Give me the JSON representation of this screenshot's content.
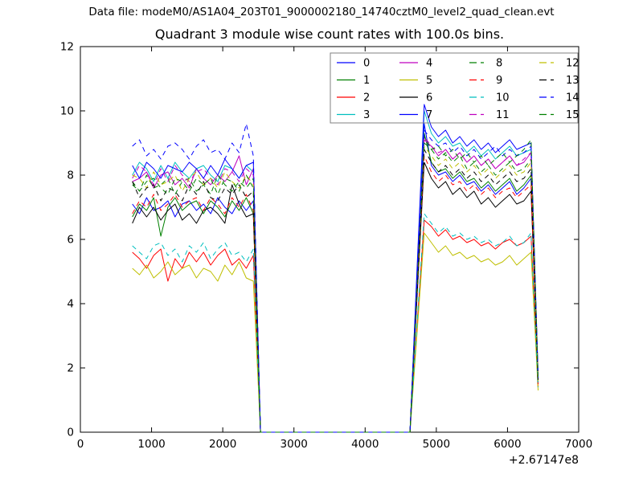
{
  "header": {
    "data_file": "Data file: modeM0/AS1A04_203T01_9000002180_14740cztM0_level2_quad_clean.evt"
  },
  "chart_data": {
    "type": "line",
    "title": "Quadrant 3 module wise count rates with 100.0s bins.",
    "xlabel": "",
    "ylabel": "",
    "bin_seconds": "100.0",
    "xlim": [
      0,
      7000
    ],
    "ylim": [
      0,
      12
    ],
    "x_ticks": [
      0,
      1000,
      2000,
      3000,
      4000,
      5000,
      6000,
      7000
    ],
    "y_ticks": [
      0,
      2,
      4,
      6,
      8,
      10,
      12
    ],
    "x_offset_label": "+2.67147e8",
    "grid": false,
    "legend_position": "upper-center-right",
    "legend_columns": 4,
    "x": [
      730,
      830,
      930,
      1030,
      1130,
      1230,
      1330,
      1430,
      1530,
      1630,
      1730,
      1830,
      1930,
      2030,
      2130,
      2230,
      2330,
      2430,
      2530,
      2630,
      2730,
      2830,
      2930,
      3030,
      3130,
      3230,
      3330,
      3430,
      3530,
      3630,
      3730,
      3830,
      3930,
      4030,
      4130,
      4230,
      4330,
      4430,
      4530,
      4630,
      4730,
      4830,
      4930,
      5030,
      5130,
      5230,
      5330,
      5430,
      5530,
      5630,
      5730,
      5830,
      5930,
      6030,
      6130,
      6230,
      6330,
      6430
    ],
    "series": [
      {
        "name": "0",
        "color": "#0000ff",
        "dashed": false,
        "values": [
          7.1,
          6.8,
          7.3,
          6.9,
          7.0,
          7.2,
          6.7,
          7.1,
          7.2,
          6.9,
          7.1,
          6.8,
          7.3,
          7.0,
          6.8,
          7.2,
          6.9,
          7.2,
          0,
          0,
          0,
          0,
          0,
          0,
          0,
          0,
          0,
          0,
          0,
          0,
          0,
          0,
          0,
          0,
          0,
          0,
          0,
          0,
          0,
          0,
          4.8,
          9.6,
          8.3,
          8.0,
          8.1,
          7.8,
          8.0,
          7.7,
          7.8,
          7.5,
          7.7,
          7.4,
          7.6,
          7.8,
          7.4,
          7.6,
          7.9,
          1.5
        ]
      },
      {
        "name": "1",
        "color": "#008000",
        "dashed": false,
        "values": [
          6.7,
          7.1,
          6.9,
          7.3,
          6.1,
          7.0,
          7.3,
          6.9,
          7.1,
          7.2,
          6.8,
          7.2,
          7.0,
          6.7,
          7.2,
          6.9,
          7.3,
          6.8,
          0,
          0,
          0,
          0,
          0,
          0,
          0,
          0,
          0,
          0,
          0,
          0,
          0,
          0,
          0,
          0,
          0,
          0,
          0,
          0,
          0,
          0,
          4.7,
          9.3,
          8.4,
          8.1,
          8.2,
          7.9,
          8.1,
          7.8,
          7.9,
          7.6,
          7.8,
          7.5,
          7.7,
          7.9,
          7.5,
          7.7,
          8.0,
          1.6
        ]
      },
      {
        "name": "2",
        "color": "#ff0000",
        "dashed": false,
        "values": [
          5.6,
          5.4,
          5.1,
          5.5,
          5.7,
          4.7,
          5.4,
          5.1,
          5.6,
          5.3,
          5.6,
          5.2,
          5.5,
          5.7,
          5.2,
          5.4,
          5.1,
          5.5,
          0,
          0,
          0,
          0,
          0,
          0,
          0,
          0,
          0,
          0,
          0,
          0,
          0,
          0,
          0,
          0,
          0,
          0,
          0,
          0,
          0,
          0,
          3.3,
          6.6,
          6.4,
          6.1,
          6.3,
          6.0,
          6.1,
          5.9,
          6.0,
          5.8,
          5.9,
          5.7,
          5.9,
          6.0,
          5.8,
          5.9,
          6.1,
          1.4
        ]
      },
      {
        "name": "3",
        "color": "#00bfbf",
        "dashed": false,
        "values": [
          8.0,
          8.4,
          8.2,
          7.8,
          8.3,
          7.9,
          8.4,
          8.1,
          7.9,
          8.2,
          8.3,
          8.0,
          7.8,
          8.3,
          8.2,
          7.9,
          8.3,
          8.1,
          0,
          0,
          0,
          0,
          0,
          0,
          0,
          0,
          0,
          0,
          0,
          0,
          0,
          0,
          0,
          0,
          0,
          0,
          0,
          0,
          0,
          0,
          5.0,
          10.0,
          9.3,
          9.0,
          9.2,
          8.9,
          9.0,
          8.7,
          8.9,
          8.6,
          8.8,
          8.5,
          8.7,
          8.9,
          8.6,
          8.7,
          8.8,
          1.7
        ]
      },
      {
        "name": "4",
        "color": "#bf00bf",
        "dashed": false,
        "values": [
          7.8,
          7.9,
          8.1,
          7.6,
          8.0,
          8.1,
          7.7,
          7.9,
          7.6,
          8.2,
          7.9,
          7.7,
          8.0,
          7.8,
          8.1,
          8.6,
          7.7,
          8.2,
          0,
          0,
          0,
          0,
          0,
          0,
          0,
          0,
          0,
          0,
          0,
          0,
          0,
          0,
          0,
          0,
          0,
          0,
          0,
          0,
          0,
          0,
          4.6,
          9.1,
          8.9,
          8.6,
          8.8,
          8.5,
          8.7,
          8.4,
          8.6,
          8.3,
          8.5,
          8.2,
          8.4,
          8.6,
          8.3,
          8.4,
          8.7,
          1.6
        ]
      },
      {
        "name": "5",
        "color": "#bfbf00",
        "dashed": false,
        "values": [
          5.1,
          4.9,
          5.2,
          4.8,
          5.0,
          5.3,
          4.9,
          5.1,
          5.2,
          4.8,
          5.1,
          5.0,
          4.7,
          5.2,
          4.9,
          5.3,
          4.8,
          4.7,
          0,
          0,
          0,
          0,
          0,
          0,
          0,
          0,
          0,
          0,
          0,
          0,
          0,
          0,
          0,
          0,
          0,
          0,
          0,
          0,
          0,
          0,
          3.1,
          6.2,
          5.9,
          5.6,
          5.8,
          5.5,
          5.6,
          5.4,
          5.5,
          5.3,
          5.4,
          5.2,
          5.3,
          5.5,
          5.2,
          5.4,
          5.6,
          1.3
        ]
      },
      {
        "name": "6",
        "color": "#000000",
        "dashed": false,
        "values": [
          6.5,
          7.0,
          6.7,
          7.0,
          6.6,
          6.9,
          7.1,
          6.6,
          6.8,
          6.5,
          6.9,
          7.0,
          6.8,
          6.5,
          7.7,
          7.1,
          6.7,
          6.8,
          0,
          0,
          0,
          0,
          0,
          0,
          0,
          0,
          0,
          0,
          0,
          0,
          0,
          0,
          0,
          0,
          0,
          0,
          0,
          0,
          0,
          0,
          4.2,
          8.4,
          7.9,
          7.6,
          7.8,
          7.4,
          7.6,
          7.3,
          7.5,
          7.1,
          7.3,
          7.0,
          7.2,
          7.4,
          7.1,
          7.2,
          7.5,
          1.5
        ]
      },
      {
        "name": "7",
        "color": "#0000ff",
        "dashed": false,
        "values": [
          8.3,
          7.9,
          8.4,
          8.2,
          7.9,
          8.3,
          8.2,
          8.1,
          8.4,
          8.2,
          7.9,
          8.3,
          8.0,
          8.5,
          8.2,
          7.9,
          8.3,
          8.4,
          0,
          0,
          0,
          0,
          0,
          0,
          0,
          0,
          0,
          0,
          0,
          0,
          0,
          0,
          0,
          0,
          0,
          0,
          0,
          0,
          0,
          0,
          5.1,
          10.2,
          9.5,
          9.2,
          9.4,
          9.0,
          9.2,
          8.9,
          9.1,
          8.8,
          9.0,
          8.7,
          8.9,
          9.1,
          8.8,
          8.9,
          9.0,
          1.8
        ]
      },
      {
        "name": "8",
        "color": "#008000",
        "dashed": true,
        "values": [
          7.8,
          7.5,
          8.0,
          7.6,
          7.7,
          7.9,
          7.4,
          7.8,
          7.9,
          7.5,
          7.7,
          7.4,
          8.0,
          7.7,
          7.5,
          7.8,
          7.6,
          7.9,
          0,
          0,
          0,
          0,
          0,
          0,
          0,
          0,
          0,
          0,
          0,
          0,
          0,
          0,
          0,
          0,
          0,
          0,
          0,
          0,
          0,
          0,
          4.6,
          9.2,
          8.8,
          8.5,
          8.7,
          8.4,
          8.6,
          8.2,
          8.4,
          8.1,
          8.3,
          8.0,
          8.2,
          8.4,
          8.1,
          8.2,
          8.5,
          1.6
        ]
      },
      {
        "name": "9",
        "color": "#ff0000",
        "dashed": true,
        "values": [
          6.8,
          7.2,
          7.0,
          7.4,
          6.9,
          7.1,
          7.4,
          7.0,
          7.2,
          7.3,
          6.9,
          7.3,
          7.1,
          6.8,
          7.3,
          7.0,
          7.4,
          6.9,
          0,
          0,
          0,
          0,
          0,
          0,
          0,
          0,
          0,
          0,
          0,
          0,
          0,
          0,
          0,
          0,
          0,
          0,
          0,
          0,
          0,
          0,
          4.3,
          8.6,
          8.1,
          7.8,
          8.0,
          7.7,
          7.8,
          7.5,
          7.7,
          7.4,
          7.6,
          7.3,
          7.5,
          7.6,
          7.3,
          7.5,
          7.7,
          1.5
        ]
      },
      {
        "name": "10",
        "color": "#00bfbf",
        "dashed": true,
        "values": [
          5.8,
          5.6,
          5.4,
          5.8,
          5.9,
          5.5,
          5.7,
          5.3,
          5.8,
          5.6,
          5.9,
          5.4,
          5.7,
          5.9,
          5.5,
          5.6,
          5.3,
          5.7,
          0,
          0,
          0,
          0,
          0,
          0,
          0,
          0,
          0,
          0,
          0,
          0,
          0,
          0,
          0,
          0,
          0,
          0,
          0,
          0,
          0,
          0,
          3.4,
          6.8,
          6.5,
          6.2,
          6.4,
          6.1,
          6.2,
          6.0,
          6.1,
          5.9,
          6.0,
          5.8,
          5.9,
          6.1,
          5.8,
          5.9,
          6.2,
          1.4
        ]
      },
      {
        "name": "11",
        "color": "#bf00bf",
        "dashed": true,
        "values": [
          7.9,
          8.3,
          8.1,
          7.7,
          8.2,
          7.8,
          8.3,
          8.0,
          7.8,
          8.1,
          8.2,
          7.9,
          7.7,
          8.2,
          8.1,
          7.8,
          8.2,
          8.0,
          0,
          0,
          0,
          0,
          0,
          0,
          0,
          0,
          0,
          0,
          0,
          0,
          0,
          0,
          0,
          0,
          0,
          0,
          0,
          0,
          0,
          0,
          4.6,
          9.2,
          8.9,
          8.7,
          8.8,
          8.5,
          8.7,
          8.4,
          8.6,
          8.3,
          8.5,
          8.2,
          8.4,
          8.6,
          8.3,
          8.5,
          8.7,
          1.7
        ]
      },
      {
        "name": "12",
        "color": "#bfbf00",
        "dashed": true,
        "values": [
          8.0,
          7.9,
          7.6,
          8.1,
          7.7,
          7.8,
          8.0,
          7.5,
          7.9,
          8.1,
          7.7,
          7.9,
          7.6,
          8.1,
          7.8,
          7.6,
          8.0,
          7.7,
          0,
          0,
          0,
          0,
          0,
          0,
          0,
          0,
          0,
          0,
          0,
          0,
          0,
          0,
          0,
          0,
          0,
          0,
          0,
          0,
          0,
          0,
          4.5,
          8.9,
          8.6,
          8.3,
          8.5,
          8.2,
          8.4,
          8.1,
          8.3,
          8.0,
          8.2,
          7.9,
          8.1,
          8.3,
          8.0,
          8.1,
          8.4,
          1.6
        ]
      },
      {
        "name": "13",
        "color": "#000000",
        "dashed": true,
        "values": [
          7.8,
          7.3,
          7.6,
          7.7,
          7.2,
          7.6,
          7.5,
          7.2,
          7.7,
          7.4,
          7.8,
          7.3,
          7.2,
          7.6,
          7.4,
          7.7,
          7.3,
          7.5,
          0,
          0,
          0,
          0,
          0,
          0,
          0,
          0,
          0,
          0,
          0,
          0,
          0,
          0,
          0,
          0,
          0,
          0,
          0,
          0,
          0,
          0,
          4.4,
          8.8,
          8.4,
          8.1,
          8.3,
          8.0,
          8.2,
          7.9,
          8.1,
          7.8,
          8.0,
          7.7,
          7.9,
          8.1,
          7.8,
          7.9,
          8.2,
          1.6
        ]
      },
      {
        "name": "14",
        "color": "#0000ff",
        "dashed": true,
        "values": [
          8.9,
          9.1,
          8.6,
          8.8,
          8.5,
          8.9,
          9.0,
          8.8,
          8.5,
          8.9,
          9.1,
          8.7,
          8.8,
          8.5,
          9.0,
          8.7,
          9.6,
          8.6,
          0,
          0,
          0,
          0,
          0,
          0,
          0,
          0,
          0,
          0,
          0,
          0,
          0,
          0,
          0,
          0,
          0,
          0,
          0,
          0,
          0,
          0,
          4.7,
          9.4,
          9.1,
          8.9,
          9.0,
          8.7,
          8.9,
          8.6,
          8.8,
          8.5,
          8.7,
          8.9,
          8.6,
          8.8,
          8.6,
          8.7,
          8.9,
          1.7
        ]
      },
      {
        "name": "15",
        "color": "#008000",
        "dashed": true,
        "values": [
          7.7,
          7.5,
          7.8,
          7.9,
          7.6,
          7.4,
          7.9,
          7.8,
          7.5,
          7.9,
          7.7,
          7.9,
          7.4,
          7.9,
          7.8,
          7.5,
          8.0,
          7.6,
          0,
          0,
          0,
          0,
          0,
          0,
          0,
          0,
          0,
          0,
          0,
          0,
          0,
          0,
          0,
          0,
          0,
          0,
          0,
          0,
          0,
          0,
          4.5,
          9.0,
          8.8,
          8.9,
          8.6,
          8.8,
          8.5,
          8.7,
          8.4,
          8.6,
          8.3,
          8.5,
          8.7,
          8.4,
          8.6,
          8.8,
          9.1,
          1.6
        ]
      }
    ]
  },
  "colors": {
    "background": "#ffffff",
    "frame": "#000000",
    "tick": "#000000",
    "text": "#000000",
    "legend_border": "#808080"
  }
}
